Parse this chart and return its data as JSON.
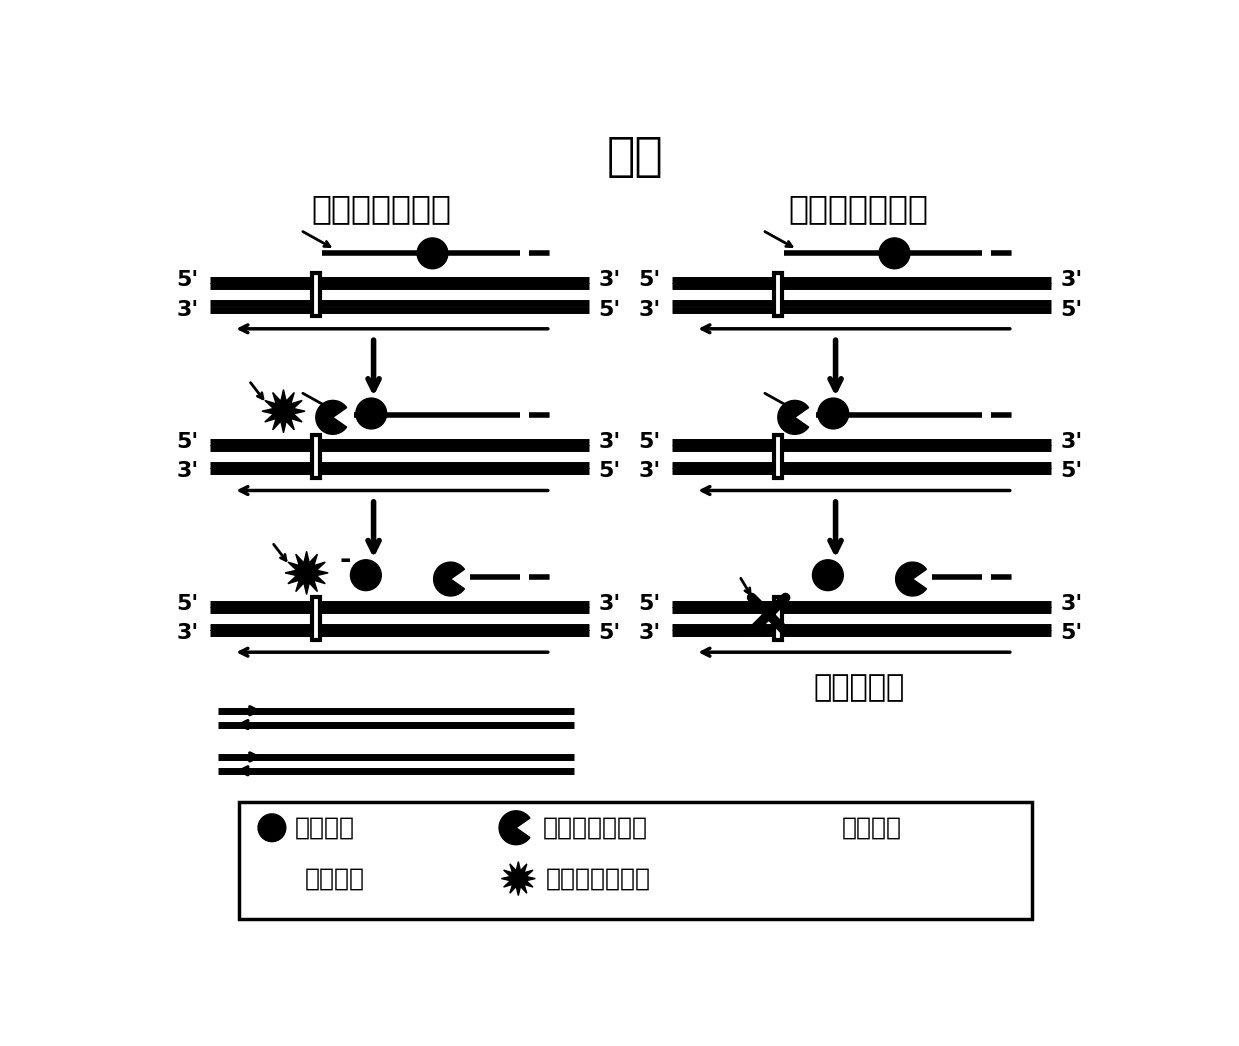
{
  "title": "错配",
  "left_subtitle": "有高保真聚合酶",
  "right_subtitle": "无高保真聚合酶",
  "right_bottom_text": "低效率扩增",
  "leg_fluor": "荧光基团",
  "leg_lopol": "低保真性聚合酶",
  "leg_mut": "突变位点",
  "leg_quench": "簬灭基团",
  "leg_hipol": "高保真性聚合酶",
  "bg_color": "#ffffff",
  "fg_color": "#000000"
}
